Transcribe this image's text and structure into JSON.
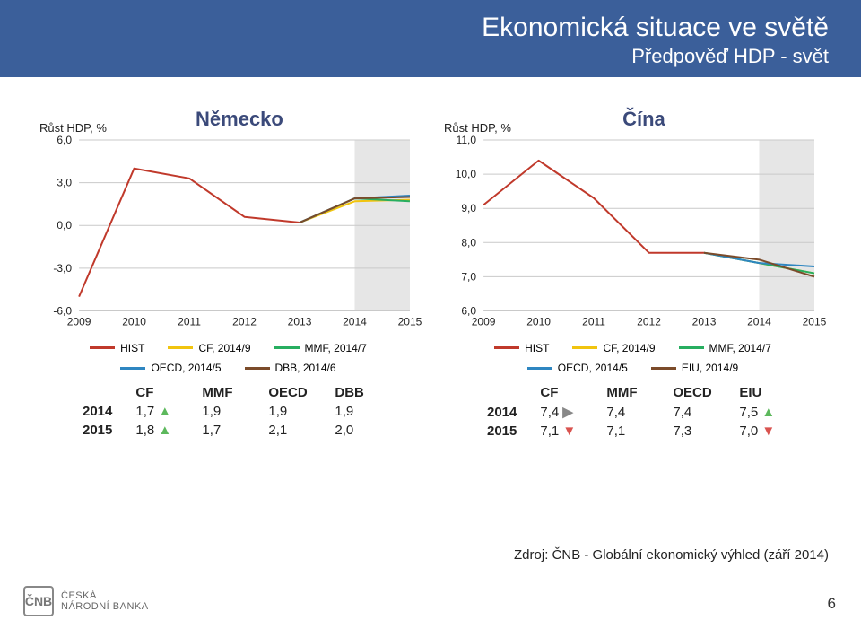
{
  "title": {
    "main": "Ekonomická situace ve světě",
    "sub": "Předpověď HDP - svět"
  },
  "source": "Zdroj: ČNB - Globální ekonomický výhled (září 2014)",
  "page_number": "6",
  "footer_logo": {
    "badge": "ČNB",
    "line1": "ČESKÁ",
    "line2": "NÁRODNÍ BANKA"
  },
  "chart_germany": {
    "yaxis_label": "Růst HDP, %",
    "title": "Německo",
    "type": "line",
    "background_color": "#ffffff",
    "forecast_band_color": "#e6e6e6",
    "grid_color": "#c9c9c9",
    "axis_color": "#666666",
    "title_color": "#3b4a7a",
    "ylim": [
      -6.0,
      6.0
    ],
    "yticks": [
      "6,0",
      "3,0",
      "0,0",
      "-3,0",
      "-6,0"
    ],
    "xticks": [
      "2009",
      "2010",
      "2011",
      "2012",
      "2013",
      "2014",
      "2015"
    ],
    "forecast_start_index": 5,
    "series": {
      "HIST": {
        "color": "#c0392b",
        "width": 2,
        "values": [
          -5.0,
          4.0,
          3.3,
          0.6,
          0.2,
          null,
          null
        ]
      },
      "CF, 2014/9": {
        "color": "#f1c40f",
        "width": 2,
        "values": [
          null,
          null,
          null,
          null,
          0.2,
          1.7,
          1.8
        ]
      },
      "MMF, 2014/7": {
        "color": "#27ae60",
        "width": 2,
        "values": [
          null,
          null,
          null,
          null,
          0.2,
          1.9,
          1.7
        ]
      },
      "OECD, 2014/5": {
        "color": "#2e86c1",
        "width": 2,
        "values": [
          null,
          null,
          null,
          null,
          0.2,
          1.9,
          2.1
        ]
      },
      "DBB, 2014/6": {
        "color": "#7b4b2a",
        "width": 2,
        "values": [
          null,
          null,
          null,
          null,
          0.2,
          1.9,
          2.0
        ]
      }
    },
    "legend_rows": [
      [
        {
          "label": "HIST",
          "color": "#c0392b"
        },
        {
          "label": "CF, 2014/9",
          "color": "#f1c40f"
        },
        {
          "label": "MMF, 2014/7",
          "color": "#27ae60"
        }
      ],
      [
        {
          "label": "OECD, 2014/5",
          "color": "#2e86c1"
        },
        {
          "label": "DBB, 2014/6",
          "color": "#7b4b2a"
        }
      ]
    ],
    "table": {
      "columns": [
        "CF",
        "MMF",
        "OECD",
        "DBB"
      ],
      "rows": [
        {
          "year": "2014",
          "values": [
            "1,7",
            "1,9",
            "1,9",
            "1,9"
          ],
          "arrows": [
            "up",
            "",
            "",
            ""
          ]
        },
        {
          "year": "2015",
          "values": [
            "1,8",
            "1,7",
            "2,1",
            "2,0"
          ],
          "arrows": [
            "up",
            "",
            "",
            ""
          ]
        }
      ]
    }
  },
  "chart_china": {
    "yaxis_label": "Růst HDP, %",
    "title": "Čína",
    "type": "line",
    "background_color": "#ffffff",
    "forecast_band_color": "#e6e6e6",
    "grid_color": "#c9c9c9",
    "axis_color": "#666666",
    "title_color": "#3b4a7a",
    "ylim": [
      6.0,
      11.0
    ],
    "yticks": [
      "11,0",
      "10,0",
      "9,0",
      "8,0",
      "7,0",
      "6,0"
    ],
    "xticks": [
      "2009",
      "2010",
      "2011",
      "2012",
      "2013",
      "2014",
      "2015"
    ],
    "forecast_start_index": 5,
    "series": {
      "HIST": {
        "color": "#c0392b",
        "width": 2,
        "values": [
          9.1,
          10.4,
          9.3,
          7.7,
          7.7,
          null,
          null
        ]
      },
      "CF, 2014/9": {
        "color": "#f1c40f",
        "width": 2,
        "values": [
          null,
          null,
          null,
          null,
          7.7,
          7.4,
          7.1
        ]
      },
      "MMF, 2014/7": {
        "color": "#27ae60",
        "width": 2,
        "values": [
          null,
          null,
          null,
          null,
          7.7,
          7.4,
          7.1
        ]
      },
      "OECD, 2014/5": {
        "color": "#2e86c1",
        "width": 2,
        "values": [
          null,
          null,
          null,
          null,
          7.7,
          7.4,
          7.3
        ]
      },
      "EIU, 2014/9": {
        "color": "#7b4b2a",
        "width": 2,
        "values": [
          null,
          null,
          null,
          null,
          7.7,
          7.5,
          7.0
        ]
      }
    },
    "legend_rows": [
      [
        {
          "label": "HIST",
          "color": "#c0392b"
        },
        {
          "label": "CF, 2014/9",
          "color": "#f1c40f"
        },
        {
          "label": "MMF, 2014/7",
          "color": "#27ae60"
        }
      ],
      [
        {
          "label": "OECD, 2014/5",
          "color": "#2e86c1"
        },
        {
          "label": "EIU, 2014/9",
          "color": "#7b4b2a"
        }
      ]
    ],
    "table": {
      "columns": [
        "CF",
        "MMF",
        "OECD",
        "EIU"
      ],
      "rows": [
        {
          "year": "2014",
          "values": [
            "7,4",
            "7,4",
            "7,4",
            "7,5"
          ],
          "arrows": [
            "flat",
            "",
            "",
            "up"
          ]
        },
        {
          "year": "2015",
          "values": [
            "7,1",
            "7,1",
            "7,3",
            "7,0"
          ],
          "arrows": [
            "down",
            "",
            "",
            "down"
          ]
        }
      ]
    }
  }
}
